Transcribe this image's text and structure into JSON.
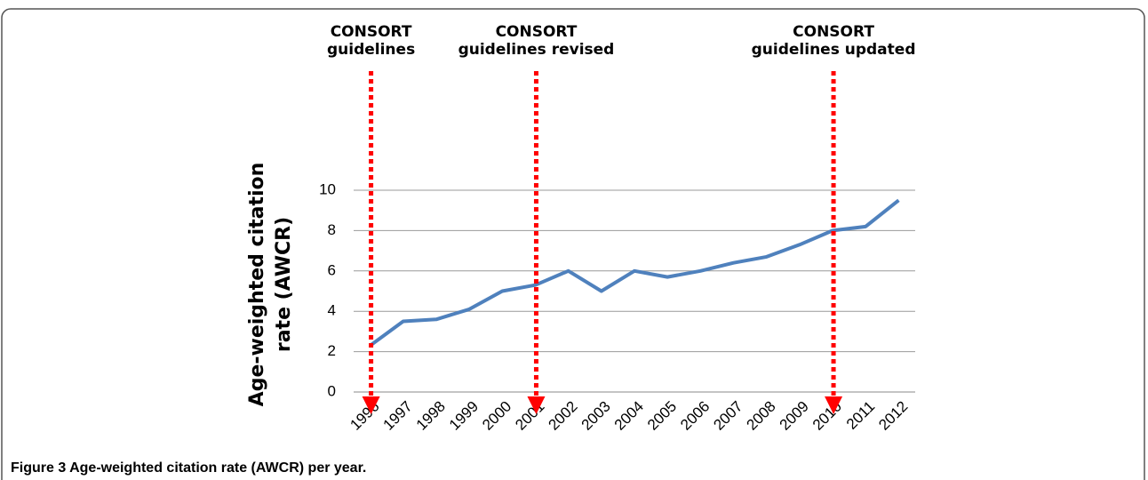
{
  "caption": "Figure 3 Age-weighted citation rate (AWCR) per year.",
  "chart_data": {
    "type": "line",
    "y_label": [
      "Age-weighted citation",
      "rate (AWCR)"
    ],
    "categories": [
      "1996",
      "1997",
      "1998",
      "1999",
      "2000",
      "2001",
      "2002",
      "2003",
      "2004",
      "2005",
      "2006",
      "2007",
      "2008",
      "2009",
      "2010",
      "2011",
      "2012"
    ],
    "series": [
      {
        "name": "AWCR",
        "color": "#4f81bd",
        "values": [
          2.3,
          3.5,
          3.6,
          4.1,
          5.0,
          5.3,
          6.0,
          5.0,
          6.0,
          5.7,
          6.0,
          6.4,
          6.7,
          7.3,
          8.0,
          8.2,
          9.5
        ]
      }
    ],
    "ylim": [
      0,
      10
    ],
    "yticks": [
      0,
      2,
      4,
      6,
      8,
      10
    ],
    "grid": true,
    "annotations": [
      {
        "x": "1996",
        "text": [
          "CONSORT",
          "guidelines"
        ],
        "color": "#ff0000"
      },
      {
        "x": "2001",
        "text": [
          "CONSORT",
          "guidelines revised"
        ],
        "color": "#ff0000"
      },
      {
        "x": "2010",
        "text": [
          "CONSORT",
          "guidelines updated"
        ],
        "color": "#ff0000"
      }
    ]
  }
}
